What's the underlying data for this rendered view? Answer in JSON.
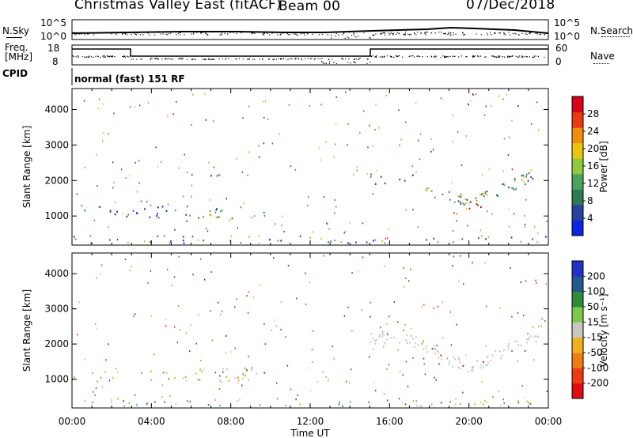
{
  "header": {
    "title": "Christmas Valley East (fitACF)",
    "beam": "Beam 00",
    "date": "07/Dec/2018"
  },
  "top_panel": {
    "nsky_label": "N.Sky",
    "nsearch_label": "N.Search",
    "left_ticks": [
      "10^5",
      "10^0"
    ],
    "right_ticks": [
      "10^5",
      "10^0"
    ],
    "freq_label_line1": "Freq.",
    "freq_label_line2": "[MHz]",
    "freq_ticks": [
      "18",
      "8"
    ],
    "nave_label": "Nave",
    "nave_ticks": [
      "60",
      "0"
    ],
    "cpid_label": "CPID",
    "cpid_value": "normal (fast) 151 RF"
  },
  "chart_data": [
    {
      "type": "heatmap",
      "name": "power",
      "ylabel": "Slant Range [km]",
      "yticks": [
        1000,
        2000,
        3000,
        4000
      ],
      "ylim": [
        180,
        4590
      ],
      "colorbar_label": "Power [dB]",
      "colorbar_ticks": [
        "28",
        "24",
        "20",
        "16",
        "12",
        "8",
        "4"
      ],
      "colors": [
        "#0a26e0",
        "#27419e",
        "#2e7a52",
        "#49a35d",
        "#8ccb3c",
        "#e8c60e",
        "#f08e0d",
        "#ec3a10",
        "#d8001a"
      ]
    },
    {
      "type": "heatmap",
      "name": "velocity",
      "ylabel": "Slant Range [km]",
      "yticks": [
        1000,
        2000,
        3000,
        4000
      ],
      "ylim": [
        180,
        4590
      ],
      "colorbar_label": "Velocity [m s⁻¹]",
      "colorbar_ticks": [
        "200",
        "100",
        "50",
        "15",
        "-15",
        "-50",
        "-100",
        "-200"
      ],
      "colors": [
        "#2030c8",
        "#235a8c",
        "#2f8a3a",
        "#7cc84a",
        "#c8c8c0",
        "#f0b21c",
        "#f07d10",
        "#ee3a12",
        "#e00c14"
      ]
    }
  ],
  "xaxis": {
    "label": "Time UT",
    "ticks": [
      "00:00",
      "04:00",
      "08:00",
      "12:00",
      "16:00",
      "20:00",
      "00:00"
    ],
    "range_hours": [
      0,
      24
    ]
  }
}
